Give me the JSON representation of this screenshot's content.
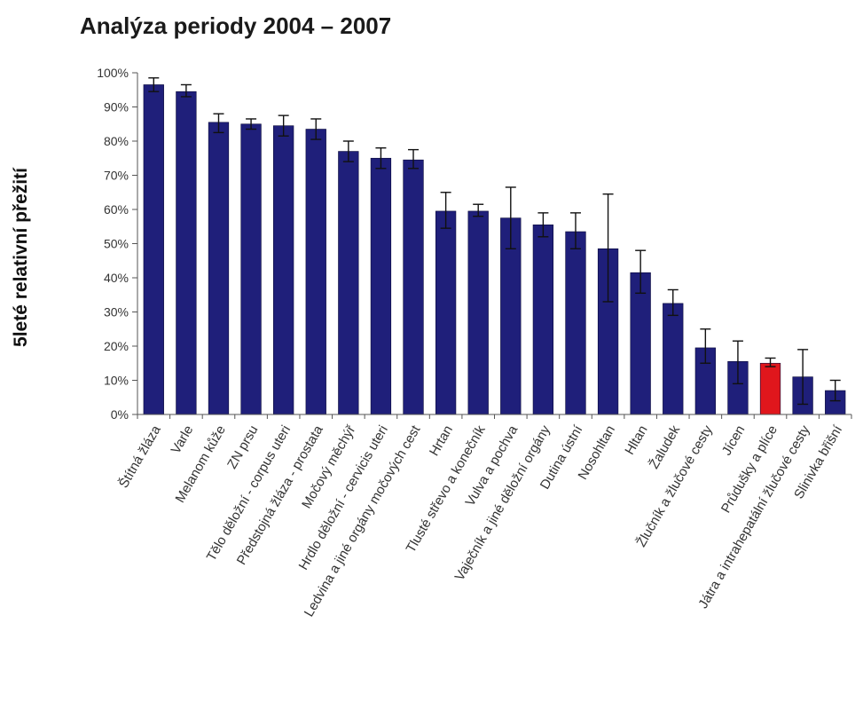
{
  "colors": {
    "bar": "#1f1f7a",
    "highlight": "#e0161c",
    "axis": "#555555",
    "error_bar": "#111111"
  },
  "chart_data": {
    "type": "bar",
    "title": "Analýza periody 2004 – 2007",
    "xlabel": "",
    "ylabel": "5leté relativní přežití",
    "ylim": [
      0,
      100
    ],
    "yticks": [
      0,
      10,
      20,
      30,
      40,
      50,
      60,
      70,
      80,
      90,
      100
    ],
    "ytick_labels": [
      "0%",
      "10%",
      "20%",
      "30%",
      "40%",
      "50%",
      "60%",
      "70%",
      "80%",
      "90%",
      "100%"
    ],
    "grid": false,
    "legend": "none",
    "highlight_index": 19,
    "categories": [
      "Štítná žláza",
      "Varle",
      "Melanom kůže",
      "ZN prsu",
      "Tělo děložní - corpus uteri",
      "Předstojná žláza - prostata",
      "Močový měchýř",
      "Hrdlo děložní - cervicis uteri",
      "Ledvina a jiné orgány močových cest",
      "Hrtan",
      "Tlusté střevo a konečník",
      "Vulva a pochva",
      "Vaječník a jiné děložní orgány",
      "Dutina ústní",
      "Nosohltan",
      "Hltan",
      "Žaludek",
      "Žlučník a žlučové cesty",
      "Jícen",
      "Průdušky a plíce",
      "Játra a intrahepatální žlučové cesty",
      "Slinivka břišní"
    ],
    "values": [
      96.5,
      94.5,
      85.5,
      85,
      84.5,
      83.5,
      77,
      75,
      74.5,
      59.5,
      59.5,
      57.5,
      55.5,
      53.5,
      48.5,
      41.5,
      32.5,
      19.5,
      15.5,
      15,
      11,
      7
    ],
    "error_low": [
      94.5,
      93,
      82.5,
      83.5,
      81.5,
      80.5,
      74,
      72,
      72,
      54.5,
      58,
      48.5,
      52,
      48.5,
      33,
      35.5,
      29,
      15,
      9,
      14,
      3,
      4
    ],
    "error_high": [
      98.5,
      96.5,
      88,
      86.5,
      87.5,
      86.5,
      80,
      78,
      77.5,
      65,
      61.5,
      66.5,
      59,
      59,
      64.5,
      48,
      36.5,
      25,
      21.5,
      16.5,
      19,
      10
    ]
  }
}
